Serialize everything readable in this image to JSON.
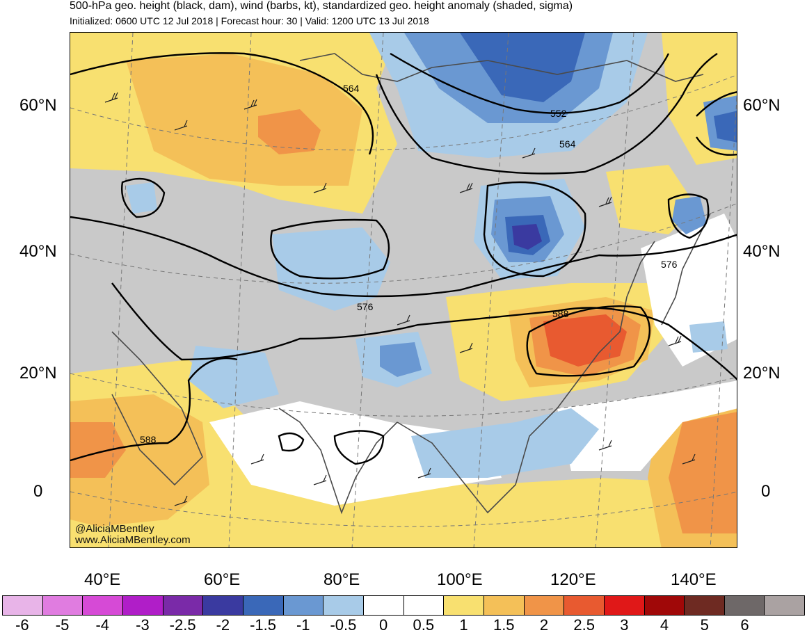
{
  "title": "500-hPa geo. height (black, dam), wind (barbs, kt), standardized geo. height anomaly (shaded, sigma)",
  "subtitle": "Initialized: 0600 UTC 12 Jul 2018 | Forecast hour: 30 | Valid: 1200 UTC 13 Jul 2018",
  "latitude_labels": [
    "60°N",
    "40°N",
    "20°N",
    "0"
  ],
  "longitude_labels": [
    "40°E",
    "60°E",
    "80°E",
    "100°E",
    "120°E",
    "140°E"
  ],
  "contour_labels": [
    "564",
    "552",
    "564",
    "576",
    "576",
    "588",
    "588"
  ],
  "credits": [
    "@AliciaMBentley",
    "www.AliciaMBentley.com"
  ],
  "colorbar": {
    "ticks": [
      "-6",
      "-5",
      "-4",
      "-3",
      "-2.5",
      "-2",
      "-1.5",
      "-1",
      "-0.5",
      "0",
      "0.5",
      "1",
      "1.5",
      "2",
      "2.5",
      "3",
      "4",
      "5",
      "6"
    ],
    "colors": [
      "#e8b4e8",
      "#e07ce0",
      "#d64ad6",
      "#b01ec8",
      "#7a2aa8",
      "#3a3aa0",
      "#3a68b8",
      "#6a98d2",
      "#a8cbe8",
      "#ffffff",
      "#ffffff",
      "#f8e070",
      "#f4c058",
      "#f09448",
      "#e85a30",
      "#e01818",
      "#a00808",
      "#6e2a22",
      "#6e6868",
      "#aaa2a2"
    ]
  },
  "colors": {
    "frame_background": "#c9c9c9",
    "contour": "#000000"
  }
}
